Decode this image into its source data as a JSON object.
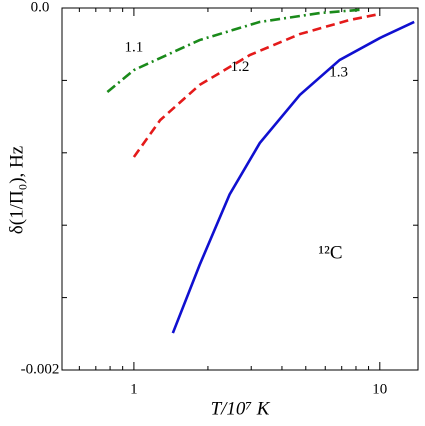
{
  "chart_data": {
    "type": "line",
    "xscale": "log",
    "x_label": "T/10⁷ K",
    "y_label": "δ(1/Π₀), Hz",
    "annotations": [
      {
        "text": "1.1",
        "x": 1.0,
        "y": -0.00022
      },
      {
        "text": "1.2",
        "x": 2.7,
        "y": -0.00033
      },
      {
        "text": "1.3",
        "x": 6.8,
        "y": -0.00036
      },
      {
        "text": "¹²C",
        "x": 6.3,
        "y": -0.00136
      }
    ],
    "xlim": [
      0.51,
      14.3
    ],
    "ylim": [
      -0.002,
      0
    ],
    "xticks": [
      1,
      10
    ],
    "yticks": [
      {
        "value": 0,
        "label": "0.0"
      },
      -0.002
    ],
    "xminor": [
      0.6,
      0.7,
      0.8,
      0.9,
      2,
      3,
      4,
      5,
      6,
      7,
      8,
      9
    ],
    "yminor": [
      -0.0004,
      -0.0008,
      -0.0012,
      -0.0016
    ],
    "series": [
      {
        "name": "1.1",
        "color": "#1a8a1a",
        "dash": "10,4,2,4",
        "x": [
          0.78,
          1.0,
          1.85,
          3.25,
          5.7,
          8.3
        ],
        "values": [
          -0.000464,
          -0.000343,
          -0.000177,
          -7.7e-05,
          -2.8e-05,
          -1e-05
        ]
      },
      {
        "name": "1.2",
        "color": "#e41a1a",
        "dash": "9,5",
        "x": [
          1.0,
          1.28,
          1.85,
          2.96,
          4.73,
          7.55,
          10.0
        ],
        "values": [
          -0.000823,
          -0.000619,
          -0.000425,
          -0.00026,
          -0.000144,
          -6.6e-05,
          -3.3e-05
        ]
      },
      {
        "name": "1.3",
        "color": "#1010d0",
        "dash": "",
        "x": [
          1.44,
          1.85,
          2.45,
          3.25,
          4.73,
          6.87,
          10.0,
          13.8
        ],
        "values": [
          -0.001796,
          -0.00142,
          -0.00103,
          -0.000746,
          -0.00048,
          -0.000287,
          -0.000166,
          -7.7e-05
        ]
      }
    ]
  }
}
